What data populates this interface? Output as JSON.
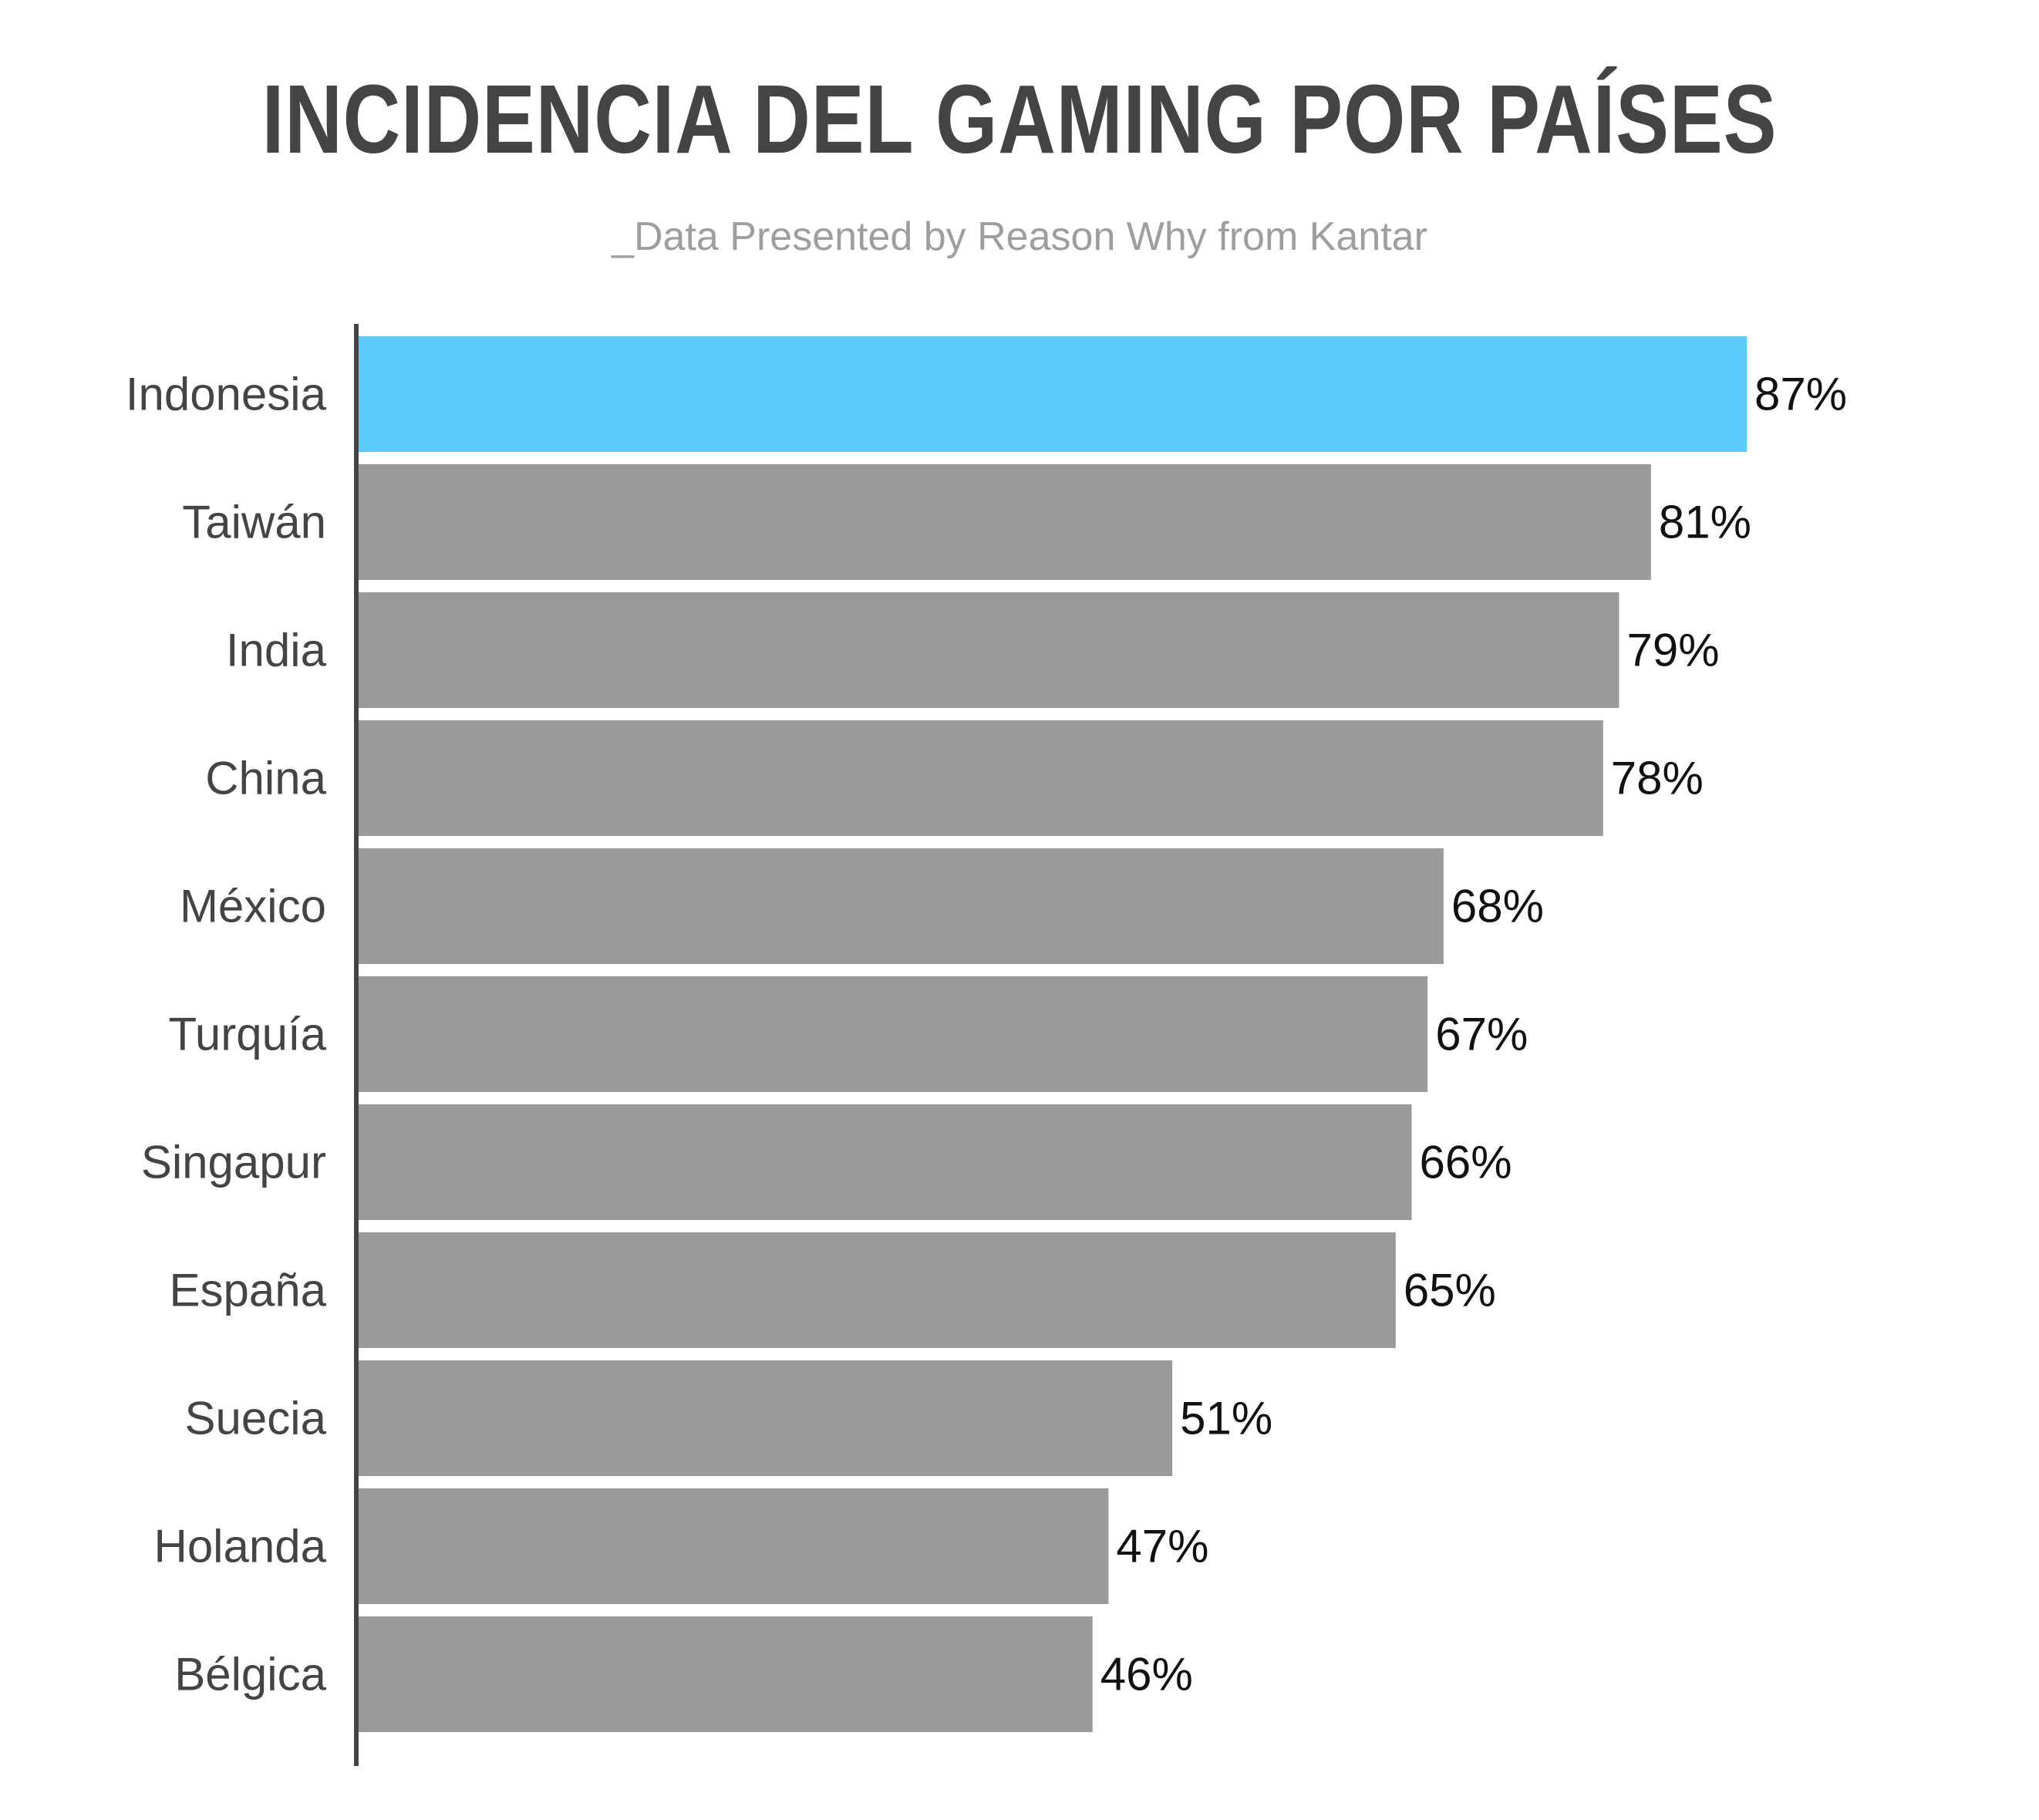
{
  "chart_data": {
    "type": "bar",
    "orientation": "horizontal",
    "title": "INCIDENCIA DEL GAMING POR PAÍSES",
    "subtitle": "_Data Presented by Reason Why from Kantar",
    "categories": [
      "Indonesia",
      "Taiwán",
      "India",
      "China",
      "México",
      "Turquía",
      "Singapur",
      "España",
      "Suecia",
      "Holanda",
      "Bélgica"
    ],
    "values": [
      87,
      81,
      79,
      78,
      68,
      67,
      66,
      65,
      51,
      47,
      46
    ],
    "value_labels": [
      "87%",
      "81%",
      "79%",
      "78%",
      "68%",
      "67%",
      "66%",
      "65%",
      "51%",
      "47%",
      "46%"
    ],
    "unit": "%",
    "xlim": [
      0,
      87
    ],
    "grid": false,
    "legend": "none",
    "colors": {
      "highlight": "#5bcbfc",
      "bar": "#9a9a9a",
      "axis": "#444444",
      "title": "#444444",
      "subtitle": "#9e9e9e"
    },
    "highlighted_category": "Indonesia"
  }
}
